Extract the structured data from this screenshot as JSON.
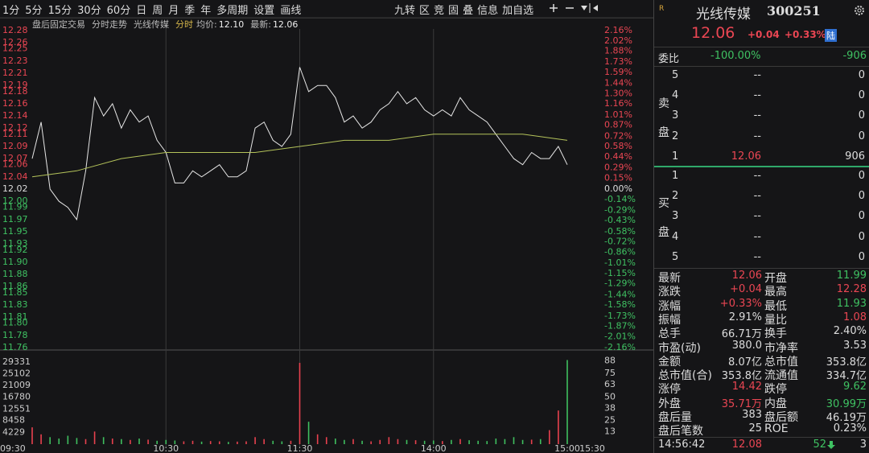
{
  "toolbar": {
    "periods": [
      "1分",
      "5分",
      "15分",
      "30分",
      "60分",
      "日",
      "周",
      "月",
      "季",
      "年",
      "多周期",
      "设置",
      "画线"
    ],
    "tools": [
      "九转",
      "区",
      "竞",
      "固",
      "叠",
      "信息",
      "加自选"
    ]
  },
  "chart_header": {
    "items": [
      "盘后固定交易",
      "分时走势",
      "光线传媒",
      "分时"
    ],
    "avg_label": "均价:",
    "avg_value": "12.10",
    "last_label": "最新:",
    "last_value": "12.06"
  },
  "chart_data": [
    {
      "type": "line",
      "xlim": [
        0,
        240
      ],
      "ylim": [
        11.76,
        12.28
      ],
      "yticks": [
        12.28,
        12.26,
        12.25,
        12.23,
        12.21,
        12.19,
        12.18,
        12.16,
        12.14,
        12.12,
        12.11,
        12.09,
        12.07,
        12.06,
        12.04,
        12.02,
        {
          "value": 12,
          "label": "12.00"
        },
        11.99,
        11.97,
        11.95,
        11.93,
        11.92,
        {
          "value": 11.9,
          "label": "11.90"
        },
        11.88,
        11.86,
        11.85,
        11.83,
        11.81,
        {
          "value": 11.8,
          "label": "11.80"
        },
        11.78,
        11.76
      ],
      "y2lim": [
        -2.16,
        2.16
      ],
      "y2ticks": [
        {
          "value": 2.16,
          "label": "2.16%"
        },
        {
          "value": 2.02,
          "label": "2.02%"
        },
        {
          "value": 1.88,
          "label": "1.88%"
        },
        {
          "value": 1.73,
          "label": "1.73%"
        },
        {
          "value": 1.59,
          "label": "1.59%"
        },
        {
          "value": 1.44,
          "label": "1.44%"
        },
        {
          "value": 1.3,
          "label": "1.30%"
        },
        {
          "value": 1.16,
          "label": "1.16%"
        },
        {
          "value": 1.01,
          "label": "1.01%"
        },
        {
          "value": 0.87,
          "label": "0.87%"
        },
        {
          "value": 0.72,
          "label": "0.72%"
        },
        {
          "value": 0.58,
          "label": "0.58%"
        },
        {
          "value": 0.44,
          "label": "0.44%"
        },
        {
          "value": 0.29,
          "label": "0.29%"
        },
        {
          "value": 0.15,
          "label": "0.15%"
        },
        {
          "value": 0,
          "label": "0.00%"
        },
        {
          "value": -0.14,
          "label": "-0.14%"
        },
        {
          "value": -0.29,
          "label": "-0.29%"
        },
        {
          "value": -0.43,
          "label": "-0.43%"
        },
        {
          "value": -0.58,
          "label": "-0.58%"
        },
        {
          "value": -0.72,
          "label": "-0.72%"
        },
        {
          "value": -0.86,
          "label": "-0.86%"
        },
        {
          "value": -1.01,
          "label": "-1.01%"
        },
        {
          "value": -1.15,
          "label": "-1.15%"
        },
        {
          "value": -1.29,
          "label": "-1.29%"
        },
        {
          "value": -1.44,
          "label": "-1.44%"
        },
        {
          "value": -1.58,
          "label": "-1.58%"
        },
        {
          "value": -1.73,
          "label": "-1.73%"
        },
        {
          "value": -1.87,
          "label": "-1.87%"
        },
        {
          "value": -2.01,
          "label": "-2.01%"
        },
        {
          "value": -2.16,
          "label": "-2.16%"
        }
      ],
      "series": [
        {
          "color": "#e6e6e6",
          "x": [
            0,
            4,
            8,
            12,
            16,
            20,
            24,
            28,
            32,
            36,
            40,
            44,
            48,
            52,
            56,
            60,
            64,
            68,
            72,
            76,
            80,
            84,
            88,
            92,
            96,
            100,
            104,
            108,
            112,
            116,
            120,
            124,
            128,
            132,
            136,
            140,
            144,
            148,
            152,
            156,
            160,
            164,
            168,
            172,
            176,
            180,
            184,
            188,
            192,
            196,
            200,
            204,
            208,
            212,
            216,
            220,
            224,
            228,
            232,
            236,
            240
          ],
          "values": [
            12.07,
            12.13,
            12.02,
            12.0,
            11.99,
            11.97,
            12.05,
            12.17,
            12.14,
            12.16,
            12.12,
            12.15,
            12.13,
            12.14,
            12.1,
            12.08,
            12.03,
            12.03,
            12.05,
            12.04,
            12.05,
            12.06,
            12.04,
            12.04,
            12.05,
            12.12,
            12.13,
            12.1,
            12.09,
            12.11,
            12.22,
            12.18,
            12.19,
            12.19,
            12.17,
            12.13,
            12.14,
            12.12,
            12.13,
            12.15,
            12.16,
            12.18,
            12.16,
            12.17,
            12.15,
            12.14,
            12.15,
            12.14,
            12.17,
            12.15,
            12.14,
            12.13,
            12.11,
            12.09,
            12.07,
            12.06,
            12.08,
            12.07,
            12.07,
            12.09,
            12.06
          ]
        },
        {
          "color": "#b4c35a",
          "x": [
            0,
            20,
            40,
            60,
            80,
            100,
            120,
            140,
            160,
            180,
            200,
            220,
            240
          ],
          "values": [
            12.04,
            12.05,
            12.07,
            12.08,
            12.08,
            12.08,
            12.09,
            12.1,
            12.1,
            12.11,
            12.11,
            12.11,
            12.1
          ]
        }
      ]
    },
    {
      "type": "bar",
      "xlim": [
        0,
        240
      ],
      "ylim": [
        0,
        33000
      ],
      "yticks": [
        29331,
        25102,
        21009,
        16780,
        12551,
        8458,
        4229
      ],
      "y2lim": [
        0,
        98
      ],
      "y2ticks": [
        88,
        75,
        63,
        50,
        38,
        25,
        13
      ],
      "xticks": [
        {
          "value": 0,
          "label": "09:30"
        },
        {
          "value": 60,
          "label": "10:30"
        },
        {
          "value": 120,
          "label": "11:30"
        },
        {
          "value": 180,
          "label": "14:00"
        },
        {
          "value": 240,
          "label": "15:00"
        }
      ],
      "end_label": "15:30",
      "colors": {
        "up": "#e8414e",
        "down": "#3fbf5f"
      },
      "x": [
        0,
        4,
        8,
        12,
        16,
        20,
        24,
        28,
        32,
        36,
        40,
        44,
        48,
        52,
        56,
        60,
        64,
        68,
        72,
        76,
        80,
        84,
        88,
        92,
        96,
        100,
        104,
        108,
        112,
        116,
        120,
        124,
        128,
        132,
        136,
        140,
        144,
        148,
        152,
        156,
        160,
        164,
        168,
        172,
        176,
        180,
        184,
        188,
        192,
        196,
        200,
        204,
        208,
        212,
        216,
        220,
        224,
        228,
        232,
        236,
        240
      ],
      "values": [
        6000,
        3500,
        2500,
        2000,
        3000,
        2200,
        1800,
        4500,
        2500,
        2000,
        1800,
        1500,
        2000,
        1600,
        1200,
        1500,
        1300,
        1000,
        1200,
        900,
        1100,
        1000,
        800,
        900,
        1000,
        2500,
        1800,
        1200,
        1000,
        1200,
        29000,
        8000,
        3500,
        2500,
        2000,
        1500,
        1800,
        1200,
        1000,
        1500,
        2500,
        1800,
        1500,
        1400,
        1200,
        1300,
        1100,
        1500,
        1800,
        1400,
        1200,
        1100,
        2000,
        1800,
        2500,
        1500,
        1600,
        1800,
        5000,
        12000,
        30000
      ]
    }
  ],
  "quote": {
    "badge": "R",
    "name": "光线传媒",
    "code": "300251",
    "price": "12.06",
    "change": "+0.04",
    "pct": "+0.33%",
    "market": "陆"
  },
  "order_book": {
    "ratio_label": "委比",
    "ratio": "-100.00%",
    "diff": "-906",
    "sell_label": [
      "卖",
      "盘"
    ],
    "buy_label": [
      "买",
      "盘"
    ],
    "sell": [
      [
        "5",
        "--",
        "0"
      ],
      [
        "4",
        "--",
        "0"
      ],
      [
        "3",
        "--",
        "0"
      ],
      [
        "2",
        "--",
        "0"
      ],
      [
        "1",
        "12.06",
        "906"
      ]
    ],
    "buy": [
      [
        "1",
        "--",
        "0"
      ],
      [
        "2",
        "--",
        "0"
      ],
      [
        "3",
        "--",
        "0"
      ],
      [
        "4",
        "--",
        "0"
      ],
      [
        "5",
        "--",
        "0"
      ]
    ]
  },
  "stats": [
    [
      "最新",
      "12.06",
      "开盘",
      "11.99"
    ],
    [
      "涨跌",
      "+0.04",
      "最高",
      "12.28"
    ],
    [
      "涨幅",
      "+0.33%",
      "最低",
      "11.93"
    ],
    [
      "振幅",
      "2.91%",
      "量比",
      "1.08"
    ],
    [
      "总手",
      "66.71万",
      "换手",
      "2.40%"
    ],
    [
      "市盈(动)",
      "380.0",
      "市净率",
      "3.53"
    ],
    [
      "金额",
      "8.07亿",
      "总市值",
      "353.8亿"
    ],
    [
      "总市值(合)",
      "353.8亿",
      "流通值",
      "334.7亿"
    ],
    [
      "涨停",
      "14.42",
      "跌停",
      "9.62"
    ],
    [
      "外盘",
      "35.71万",
      "内盘",
      "30.99万"
    ],
    [
      "盘后量",
      "383",
      "盘后额",
      "46.19万"
    ],
    [
      "盘后笔数",
      "25",
      "ROE",
      "0.23%"
    ]
  ],
  "trade": [
    "14:56:42",
    "12.08",
    "52",
    "3"
  ]
}
